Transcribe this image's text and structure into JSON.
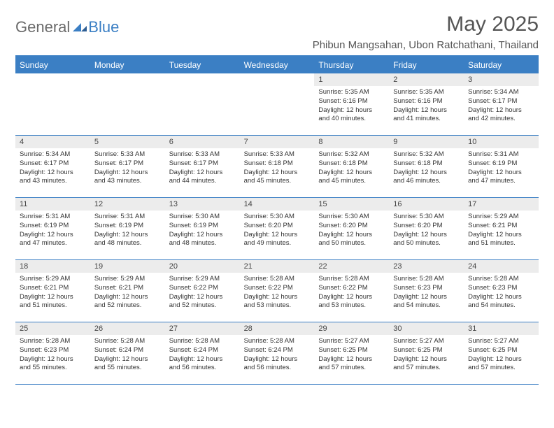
{
  "logo": {
    "part1": "General",
    "part2": "Blue"
  },
  "title": "May 2025",
  "location": "Phibun Mangsahan, Ubon Ratchathani, Thailand",
  "colors": {
    "accent": "#3b7fc4",
    "header_bg": "#3b7fc4",
    "header_text": "#ffffff",
    "daynum_bg": "#ececec",
    "text": "#333333",
    "logo_gray": "#6b6b6b"
  },
  "day_labels": [
    "Sunday",
    "Monday",
    "Tuesday",
    "Wednesday",
    "Thursday",
    "Friday",
    "Saturday"
  ],
  "weeks": [
    [
      {
        "n": "",
        "sr": "",
        "ss": "",
        "dl": ""
      },
      {
        "n": "",
        "sr": "",
        "ss": "",
        "dl": ""
      },
      {
        "n": "",
        "sr": "",
        "ss": "",
        "dl": ""
      },
      {
        "n": "",
        "sr": "",
        "ss": "",
        "dl": ""
      },
      {
        "n": "1",
        "sr": "Sunrise: 5:35 AM",
        "ss": "Sunset: 6:16 PM",
        "dl": "Daylight: 12 hours and 40 minutes."
      },
      {
        "n": "2",
        "sr": "Sunrise: 5:35 AM",
        "ss": "Sunset: 6:16 PM",
        "dl": "Daylight: 12 hours and 41 minutes."
      },
      {
        "n": "3",
        "sr": "Sunrise: 5:34 AM",
        "ss": "Sunset: 6:17 PM",
        "dl": "Daylight: 12 hours and 42 minutes."
      }
    ],
    [
      {
        "n": "4",
        "sr": "Sunrise: 5:34 AM",
        "ss": "Sunset: 6:17 PM",
        "dl": "Daylight: 12 hours and 43 minutes."
      },
      {
        "n": "5",
        "sr": "Sunrise: 5:33 AM",
        "ss": "Sunset: 6:17 PM",
        "dl": "Daylight: 12 hours and 43 minutes."
      },
      {
        "n": "6",
        "sr": "Sunrise: 5:33 AM",
        "ss": "Sunset: 6:17 PM",
        "dl": "Daylight: 12 hours and 44 minutes."
      },
      {
        "n": "7",
        "sr": "Sunrise: 5:33 AM",
        "ss": "Sunset: 6:18 PM",
        "dl": "Daylight: 12 hours and 45 minutes."
      },
      {
        "n": "8",
        "sr": "Sunrise: 5:32 AM",
        "ss": "Sunset: 6:18 PM",
        "dl": "Daylight: 12 hours and 45 minutes."
      },
      {
        "n": "9",
        "sr": "Sunrise: 5:32 AM",
        "ss": "Sunset: 6:18 PM",
        "dl": "Daylight: 12 hours and 46 minutes."
      },
      {
        "n": "10",
        "sr": "Sunrise: 5:31 AM",
        "ss": "Sunset: 6:19 PM",
        "dl": "Daylight: 12 hours and 47 minutes."
      }
    ],
    [
      {
        "n": "11",
        "sr": "Sunrise: 5:31 AM",
        "ss": "Sunset: 6:19 PM",
        "dl": "Daylight: 12 hours and 47 minutes."
      },
      {
        "n": "12",
        "sr": "Sunrise: 5:31 AM",
        "ss": "Sunset: 6:19 PM",
        "dl": "Daylight: 12 hours and 48 minutes."
      },
      {
        "n": "13",
        "sr": "Sunrise: 5:30 AM",
        "ss": "Sunset: 6:19 PM",
        "dl": "Daylight: 12 hours and 48 minutes."
      },
      {
        "n": "14",
        "sr": "Sunrise: 5:30 AM",
        "ss": "Sunset: 6:20 PM",
        "dl": "Daylight: 12 hours and 49 minutes."
      },
      {
        "n": "15",
        "sr": "Sunrise: 5:30 AM",
        "ss": "Sunset: 6:20 PM",
        "dl": "Daylight: 12 hours and 50 minutes."
      },
      {
        "n": "16",
        "sr": "Sunrise: 5:30 AM",
        "ss": "Sunset: 6:20 PM",
        "dl": "Daylight: 12 hours and 50 minutes."
      },
      {
        "n": "17",
        "sr": "Sunrise: 5:29 AM",
        "ss": "Sunset: 6:21 PM",
        "dl": "Daylight: 12 hours and 51 minutes."
      }
    ],
    [
      {
        "n": "18",
        "sr": "Sunrise: 5:29 AM",
        "ss": "Sunset: 6:21 PM",
        "dl": "Daylight: 12 hours and 51 minutes."
      },
      {
        "n": "19",
        "sr": "Sunrise: 5:29 AM",
        "ss": "Sunset: 6:21 PM",
        "dl": "Daylight: 12 hours and 52 minutes."
      },
      {
        "n": "20",
        "sr": "Sunrise: 5:29 AM",
        "ss": "Sunset: 6:22 PM",
        "dl": "Daylight: 12 hours and 52 minutes."
      },
      {
        "n": "21",
        "sr": "Sunrise: 5:28 AM",
        "ss": "Sunset: 6:22 PM",
        "dl": "Daylight: 12 hours and 53 minutes."
      },
      {
        "n": "22",
        "sr": "Sunrise: 5:28 AM",
        "ss": "Sunset: 6:22 PM",
        "dl": "Daylight: 12 hours and 53 minutes."
      },
      {
        "n": "23",
        "sr": "Sunrise: 5:28 AM",
        "ss": "Sunset: 6:23 PM",
        "dl": "Daylight: 12 hours and 54 minutes."
      },
      {
        "n": "24",
        "sr": "Sunrise: 5:28 AM",
        "ss": "Sunset: 6:23 PM",
        "dl": "Daylight: 12 hours and 54 minutes."
      }
    ],
    [
      {
        "n": "25",
        "sr": "Sunrise: 5:28 AM",
        "ss": "Sunset: 6:23 PM",
        "dl": "Daylight: 12 hours and 55 minutes."
      },
      {
        "n": "26",
        "sr": "Sunrise: 5:28 AM",
        "ss": "Sunset: 6:24 PM",
        "dl": "Daylight: 12 hours and 55 minutes."
      },
      {
        "n": "27",
        "sr": "Sunrise: 5:28 AM",
        "ss": "Sunset: 6:24 PM",
        "dl": "Daylight: 12 hours and 56 minutes."
      },
      {
        "n": "28",
        "sr": "Sunrise: 5:28 AM",
        "ss": "Sunset: 6:24 PM",
        "dl": "Daylight: 12 hours and 56 minutes."
      },
      {
        "n": "29",
        "sr": "Sunrise: 5:27 AM",
        "ss": "Sunset: 6:25 PM",
        "dl": "Daylight: 12 hours and 57 minutes."
      },
      {
        "n": "30",
        "sr": "Sunrise: 5:27 AM",
        "ss": "Sunset: 6:25 PM",
        "dl": "Daylight: 12 hours and 57 minutes."
      },
      {
        "n": "31",
        "sr": "Sunrise: 5:27 AM",
        "ss": "Sunset: 6:25 PM",
        "dl": "Daylight: 12 hours and 57 minutes."
      }
    ]
  ]
}
